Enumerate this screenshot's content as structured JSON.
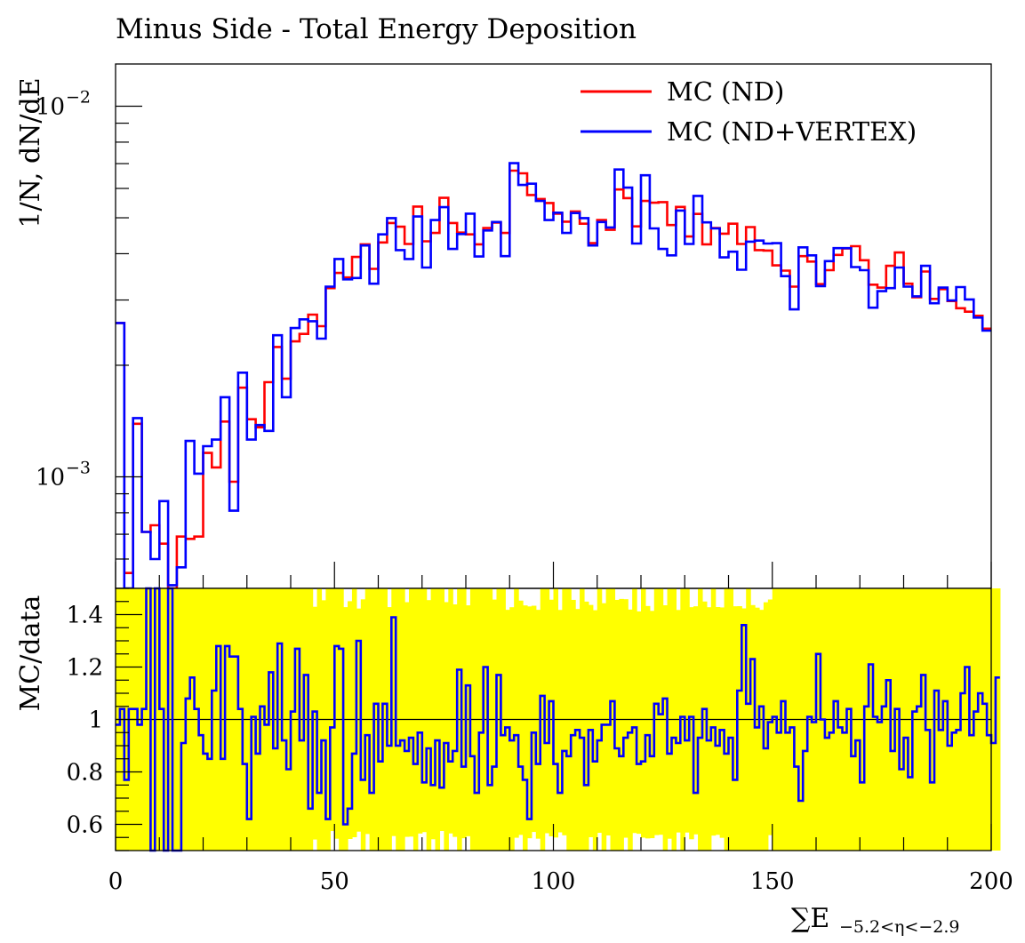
{
  "chart_data": [
    {
      "type": "line",
      "title": "Minus Side - Total Energy Deposition",
      "ylabel": "1/N, dN/dE",
      "yscale": "log",
      "ylim": [
        0.0005,
        0.013
      ],
      "xlim": [
        0,
        200
      ],
      "yticks": [
        {
          "value": 0.01,
          "base": "10",
          "exp": "−2"
        },
        {
          "value": 0.001,
          "base": "10",
          "exp": "−3"
        }
      ],
      "bin_width": 2,
      "legend_position": "top-right",
      "series": [
        {
          "name": "MC (ND)",
          "color": "#ff0000",
          "values": [
            0.0026,
            0.00055,
            0.00139,
            0.00071,
            0.00074,
            0.00066,
            0.0004,
            0.00069,
            0.00068,
            0.00069,
            0.00116,
            0.00106,
            0.00141,
            0.00097,
            0.00174,
            0.00143,
            0.00136,
            0.0018,
            0.00224,
            0.00184,
            0.00232,
            0.00243,
            0.00274,
            0.00255,
            0.00323,
            0.00355,
            0.00345,
            0.00392,
            0.00424,
            0.00364,
            0.00429,
            0.00484,
            0.00473,
            0.00425,
            0.00536,
            0.00432,
            0.00455,
            0.00566,
            0.00484,
            0.00456,
            0.00451,
            0.00424,
            0.00469,
            0.00485,
            0.00455,
            0.0067,
            0.00659,
            0.00576,
            0.00562,
            0.00548,
            0.00513,
            0.00488,
            0.0052,
            0.00482,
            0.00427,
            0.00493,
            0.00464,
            0.00596,
            0.00565,
            0.00474,
            0.00555,
            0.00549,
            0.00551,
            0.00478,
            0.00535,
            0.00445,
            0.00512,
            0.00424,
            0.00469,
            0.00453,
            0.00482,
            0.00425,
            0.00472,
            0.00409,
            0.00408,
            0.00372,
            0.0036,
            0.00326,
            0.00394,
            0.00381,
            0.00331,
            0.00361,
            0.00397,
            0.00413,
            0.00419,
            0.00384,
            0.0033,
            0.00324,
            0.00371,
            0.00403,
            0.00332,
            0.00305,
            0.00358,
            0.00302,
            0.00321,
            0.00298,
            0.00285,
            0.00279,
            0.00272,
            0.00251
          ]
        },
        {
          "name": "MC (ND+VERTEX)",
          "color": "#0000ff",
          "values": [
            0.0026,
            0.00042,
            0.00144,
            0.00071,
            0.0006,
            0.00086,
            0.00051,
            0.00057,
            0.00125,
            0.00102,
            0.00121,
            0.00126,
            0.00164,
            0.00081,
            0.00191,
            0.00126,
            0.00138,
            0.00133,
            0.00241,
            0.00164,
            0.00252,
            0.00266,
            0.00263,
            0.00236,
            0.00326,
            0.00387,
            0.00341,
            0.00344,
            0.00421,
            0.00332,
            0.00451,
            0.00499,
            0.00409,
            0.00387,
            0.00504,
            0.00367,
            0.00493,
            0.00534,
            0.00412,
            0.00452,
            0.00513,
            0.00393,
            0.00462,
            0.00487,
            0.00394,
            0.00702,
            0.00613,
            0.00618,
            0.00555,
            0.00493,
            0.00516,
            0.00455,
            0.00515,
            0.00499,
            0.00421,
            0.00487,
            0.00471,
            0.00675,
            0.00603,
            0.00426,
            0.00651,
            0.00468,
            0.00412,
            0.00396,
            0.00523,
            0.00425,
            0.00573,
            0.00486,
            0.00468,
            0.00391,
            0.00405,
            0.00362,
            0.00431,
            0.00434,
            0.00426,
            0.00427,
            0.00348,
            0.00283,
            0.00416,
            0.00396,
            0.00327,
            0.00382,
            0.00414,
            0.00414,
            0.00368,
            0.00361,
            0.00286,
            0.00317,
            0.00323,
            0.00367,
            0.00326,
            0.00307,
            0.00371,
            0.00294,
            0.00324,
            0.00299,
            0.00325,
            0.00301,
            0.00269,
            0.00248
          ]
        }
      ]
    },
    {
      "type": "line",
      "ylabel": "MC/data",
      "xlabel_main": "∑E",
      "xlabel_sub": "−5.2<η<−2.9",
      "xlim": [
        0,
        200
      ],
      "ylim": [
        0.5,
        1.5
      ],
      "xticks": [
        "0",
        "50",
        "100",
        "150",
        "200"
      ],
      "yticks": [
        "0.6",
        "0.8",
        "1",
        "1.2",
        "1.4"
      ],
      "reference_line": 1,
      "band_color": "#ffff00",
      "bin_width": 1,
      "series": [
        {
          "name": "MC (ND+VERTEX)",
          "color": "#0000ff",
          "values": [
            0.98,
            1.04,
            0.77,
            1.04,
            1.04,
            0.98,
            1.04,
            1.5,
            0.5,
            1.5,
            1.04,
            0.5,
            1.5,
            0.5,
            0.5,
            0.91,
            1.08,
            1.16,
            1.04,
            0.94,
            0.87,
            0.85,
            1.11,
            1.28,
            0.85,
            1.28,
            1.24,
            1.24,
            1.04,
            0.83,
            0.62,
            1.01,
            0.87,
            1.05,
            0.98,
            1.18,
            0.89,
            1.29,
            0.92,
            0.81,
            1.03,
            1.27,
            0.92,
            1.17,
            0.66,
            1.03,
            0.72,
            0.92,
            0.62,
            0.97,
            1.28,
            1.27,
            0.6,
            0.66,
            0.87,
            1.3,
            0.77,
            0.94,
            0.72,
            1.06,
            0.84,
            1.06,
            0.9,
            1.39,
            0.9,
            0.92,
            0.88,
            0.93,
            0.83,
            0.95,
            0.76,
            0.89,
            0.75,
            0.92,
            0.74,
            0.91,
            0.84,
            0.88,
            1.19,
            0.82,
            1.13,
            0.86,
            0.72,
            0.95,
            1.2,
            0.75,
            0.82,
            1.17,
            0.94,
            0.97,
            0.92,
            0.94,
            0.82,
            0.77,
            0.62,
            0.95,
            0.83,
            1.09,
            0.91,
            1.07,
            0.83,
            0.72,
            0.88,
            0.86,
            0.94,
            0.96,
            0.93,
            0.75,
            0.96,
            0.84,
            0.92,
            0.98,
            0.98,
            1.07,
            0.89,
            0.86,
            0.93,
            0.95,
            0.97,
            0.83,
            0.84,
            0.94,
            0.86,
            1.06,
            1.02,
            1.08,
            0.87,
            0.93,
            0.91,
            1.01,
            0.92,
            1.01,
            0.72,
            0.93,
            1.04,
            0.92,
            0.97,
            0.9,
            0.96,
            0.87,
            0.93,
            0.77,
            1.11,
            1.36,
            1.06,
            1.23,
            0.97,
            1.05,
            0.89,
            0.99,
            1.01,
            0.95,
            1.07,
            0.95,
            0.97,
            0.82,
            0.69,
            0.88,
            1.01,
            0.99,
            1.25,
            1.0,
            0.93,
            0.95,
            1.07,
            0.97,
            0.95,
            1.04,
            0.86,
            0.92,
            0.76,
            1.05,
            1.21,
            1.01,
            0.99,
            1.05,
            1.15,
            0.88,
            1.04,
            0.81,
            0.93,
            0.78,
            1.03,
            1.05,
            1.17,
            0.96,
            0.76,
            1.11,
            0.96,
            1.07,
            0.9,
            0.95,
            0.96,
            1.1,
            1.2,
            0.94,
            1.03,
            1.1,
            1.06,
            0.94,
            0.91,
            1.16
          ]
        }
      ]
    }
  ]
}
